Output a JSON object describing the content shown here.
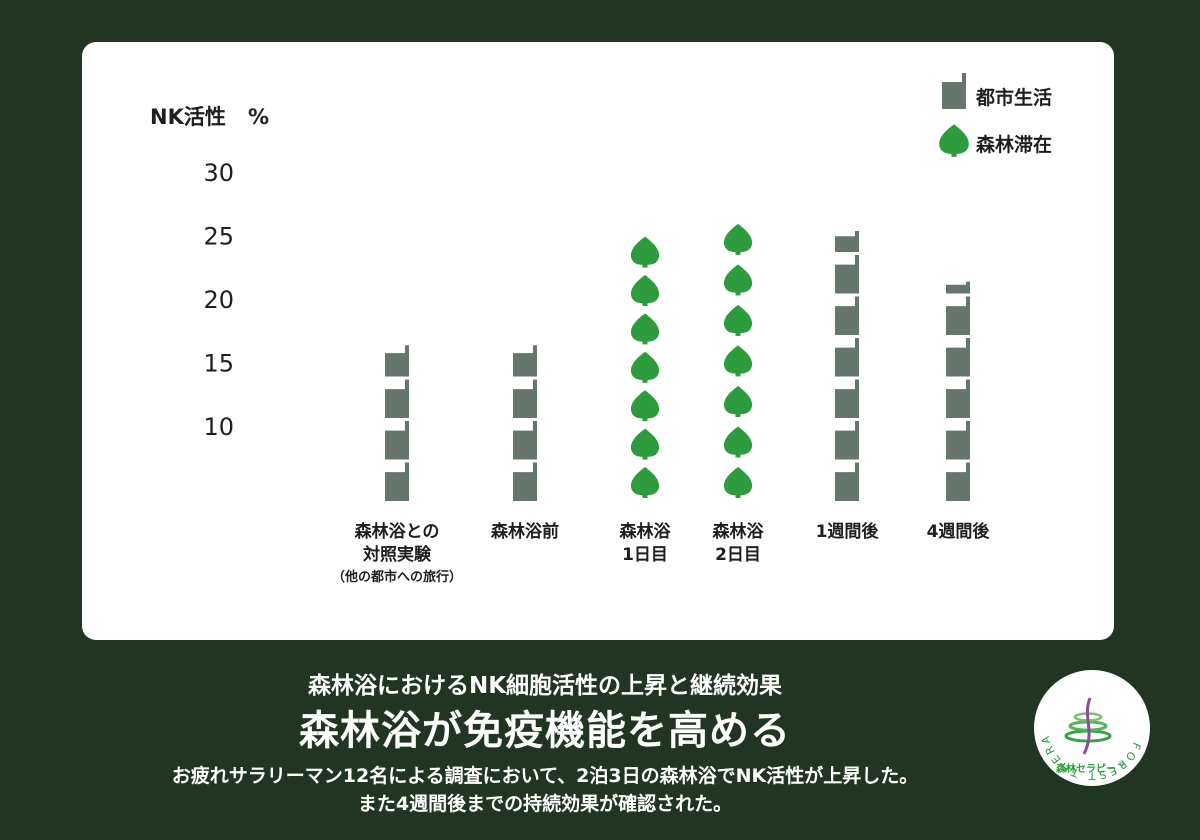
{
  "colors": {
    "background": "#223522",
    "panel": "#ffffff",
    "city": "#66766c",
    "forest": "#2f9b3f"
  },
  "chart_data": {
    "type": "bar",
    "ylabel": "NK活性",
    "yunit": "%",
    "yticks": [
      10,
      15,
      20,
      25,
      30
    ],
    "ylim": [
      4,
      30
    ],
    "legend_position": "top-right",
    "categories": [
      {
        "lines": [
          "森林浴との",
          "対照実験"
        ],
        "sub": "（他の都市への旅行）",
        "series": "都市生活",
        "value": 16.5
      },
      {
        "lines": [
          "森林浴前"
        ],
        "series": "都市生活",
        "value": 16.5
      },
      {
        "lines": [
          "森林浴",
          "1日目"
        ],
        "series": "森林滞在",
        "value": 24.9
      },
      {
        "lines": [
          "森林浴",
          "2日目"
        ],
        "series": "森林滞在",
        "value": 25.9
      },
      {
        "lines": [
          "1週間後"
        ],
        "series": "都市生活",
        "value": 25.5
      },
      {
        "lines": [
          "4週間後"
        ],
        "series": "都市生活",
        "value": 21.5
      }
    ],
    "series": [
      {
        "name": "都市生活",
        "icon": "building-icon"
      },
      {
        "name": "森林滞在",
        "icon": "tree-icon"
      }
    ]
  },
  "footer": {
    "subtitle": "森林浴におけるNK細胞活性の上昇と継続効果",
    "title": "森林浴が免疫機能を高める",
    "description_line1": "お疲れサラリーマン12名による調査において、2泊3日の森林浴でNK活性が上昇した。",
    "description_line2": "また4週間後までの持続効果が確認された。"
  },
  "logo": {
    "ring_text": "FOREST THERAPY",
    "caption": "森林セラピー",
    "mark": "®"
  }
}
